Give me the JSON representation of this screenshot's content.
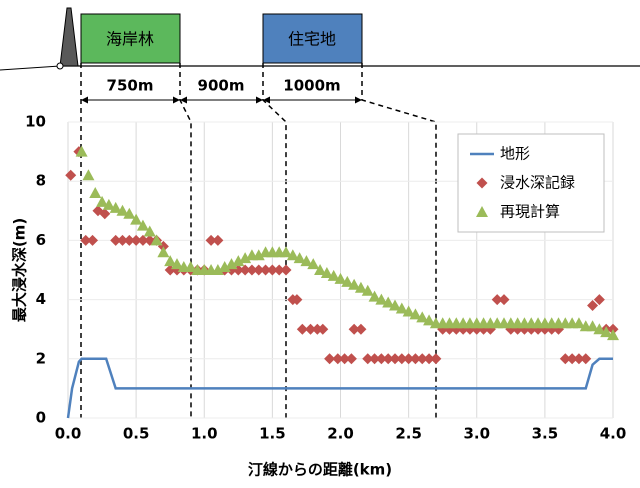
{
  "schematic": {
    "zones": [
      {
        "label": "海岸林",
        "color": "#5cb85c"
      },
      {
        "label": "住宅地",
        "color": "#4f81bd"
      }
    ],
    "distances": [
      "750m",
      "900m",
      "1000m"
    ]
  },
  "chart_data": {
    "type": "scatter",
    "xlabel": "汀線からの距離(km)",
    "ylabel": "最大浸水深(m)",
    "xlim": [
      0,
      4
    ],
    "ylim": [
      0,
      10
    ],
    "xticks": [
      {
        "value": 0,
        "label": "0.0"
      },
      0.5,
      {
        "value": 1,
        "label": "1.0"
      },
      1.5,
      {
        "value": 2,
        "label": "2.0"
      },
      2.5,
      {
        "value": 3,
        "label": "3.0"
      },
      3.5,
      {
        "value": 4,
        "label": "4.0"
      }
    ],
    "yticks": [
      0,
      2,
      4,
      6,
      8,
      10
    ],
    "grid": true,
    "legend": "upper right",
    "series": [
      {
        "name": "地形",
        "kind": "line",
        "color": "#4f81bd",
        "x": [
          0,
          0.03,
          0.08,
          0.1,
          0.28,
          0.35,
          3.8,
          3.85,
          3.9,
          4.0
        ],
        "values": [
          0,
          1,
          1.9,
          2,
          2,
          1,
          1,
          1.8,
          2,
          2
        ]
      },
      {
        "name": "浸水深記録",
        "kind": "diamond",
        "color": "#c0504d",
        "x": [
          0.02,
          0.08,
          0.13,
          0.18,
          0.22,
          0.27,
          0.35,
          0.4,
          0.45,
          0.5,
          0.55,
          0.6,
          0.65,
          0.7,
          0.75,
          0.8,
          0.85,
          0.9,
          0.95,
          1.0,
          1.05,
          1.1,
          1.15,
          1.2,
          1.25,
          1.3,
          1.35,
          1.4,
          1.45,
          1.5,
          1.55,
          1.6,
          1.65,
          1.68,
          1.72,
          1.78,
          1.83,
          1.87,
          1.92,
          1.98,
          2.03,
          2.08,
          2.1,
          2.15,
          2.2,
          2.25,
          2.3,
          2.35,
          2.4,
          2.45,
          2.5,
          2.55,
          2.6,
          2.65,
          2.7,
          2.75,
          2.8,
          2.85,
          2.9,
          2.95,
          3.0,
          3.05,
          3.1,
          3.15,
          3.2,
          3.25,
          3.3,
          3.35,
          3.4,
          3.45,
          3.5,
          3.55,
          3.6,
          3.65,
          3.7,
          3.75,
          3.8,
          3.85,
          3.9,
          3.95,
          4.0
        ],
        "values": [
          8.2,
          9,
          6,
          6,
          7,
          6.9,
          6,
          6,
          6,
          6,
          6,
          6,
          6,
          5.8,
          5,
          5,
          5,
          5,
          5,
          5,
          6,
          6,
          5,
          5,
          5,
          5,
          5,
          5,
          5,
          5,
          5,
          5,
          4,
          4,
          3,
          3,
          3,
          3,
          2,
          2,
          2,
          2,
          3,
          3,
          2,
          2,
          2,
          2,
          2,
          2,
          2,
          2,
          2,
          2,
          2,
          3,
          3,
          3,
          3,
          3,
          3,
          3,
          3,
          4,
          4,
          3,
          3,
          3,
          3,
          3,
          3,
          3,
          3,
          2,
          2,
          2,
          2,
          3.8,
          4,
          3,
          3
        ]
      },
      {
        "name": "再現計算",
        "kind": "triangle",
        "color": "#9bbb59",
        "x": [
          0.1,
          0.15,
          0.2,
          0.25,
          0.3,
          0.35,
          0.4,
          0.45,
          0.5,
          0.55,
          0.6,
          0.65,
          0.7,
          0.75,
          0.8,
          0.85,
          0.9,
          0.95,
          1.0,
          1.05,
          1.1,
          1.15,
          1.2,
          1.25,
          1.3,
          1.35,
          1.4,
          1.45,
          1.5,
          1.55,
          1.6,
          1.65,
          1.7,
          1.75,
          1.8,
          1.85,
          1.9,
          1.95,
          2.0,
          2.05,
          2.1,
          2.15,
          2.2,
          2.25,
          2.3,
          2.35,
          2.4,
          2.45,
          2.5,
          2.55,
          2.6,
          2.65,
          2.7,
          2.75,
          2.8,
          2.85,
          2.9,
          2.95,
          3.0,
          3.05,
          3.1,
          3.15,
          3.2,
          3.25,
          3.3,
          3.35,
          3.4,
          3.45,
          3.5,
          3.55,
          3.6,
          3.65,
          3.7,
          3.75,
          3.8,
          3.85,
          3.9,
          3.95,
          4.0
        ],
        "values": [
          9,
          8.2,
          7.6,
          7.3,
          7.2,
          7.1,
          7,
          6.9,
          6.7,
          6.5,
          6.3,
          6,
          5.6,
          5.3,
          5.2,
          5.1,
          5.1,
          5,
          5,
          5,
          5,
          5.1,
          5.2,
          5.3,
          5.4,
          5.5,
          5.5,
          5.6,
          5.6,
          5.6,
          5.6,
          5.5,
          5.4,
          5.3,
          5.2,
          5,
          4.9,
          4.8,
          4.7,
          4.6,
          4.5,
          4.4,
          4.3,
          4.1,
          4,
          3.9,
          3.8,
          3.7,
          3.6,
          3.5,
          3.4,
          3.3,
          3.2,
          3.2,
          3.2,
          3.2,
          3.2,
          3.2,
          3.2,
          3.2,
          3.2,
          3.2,
          3.2,
          3.2,
          3.2,
          3.2,
          3.2,
          3.2,
          3.2,
          3.2,
          3.2,
          3.2,
          3.2,
          3.2,
          3.1,
          3.1,
          3,
          2.9,
          2.8
        ]
      }
    ]
  }
}
